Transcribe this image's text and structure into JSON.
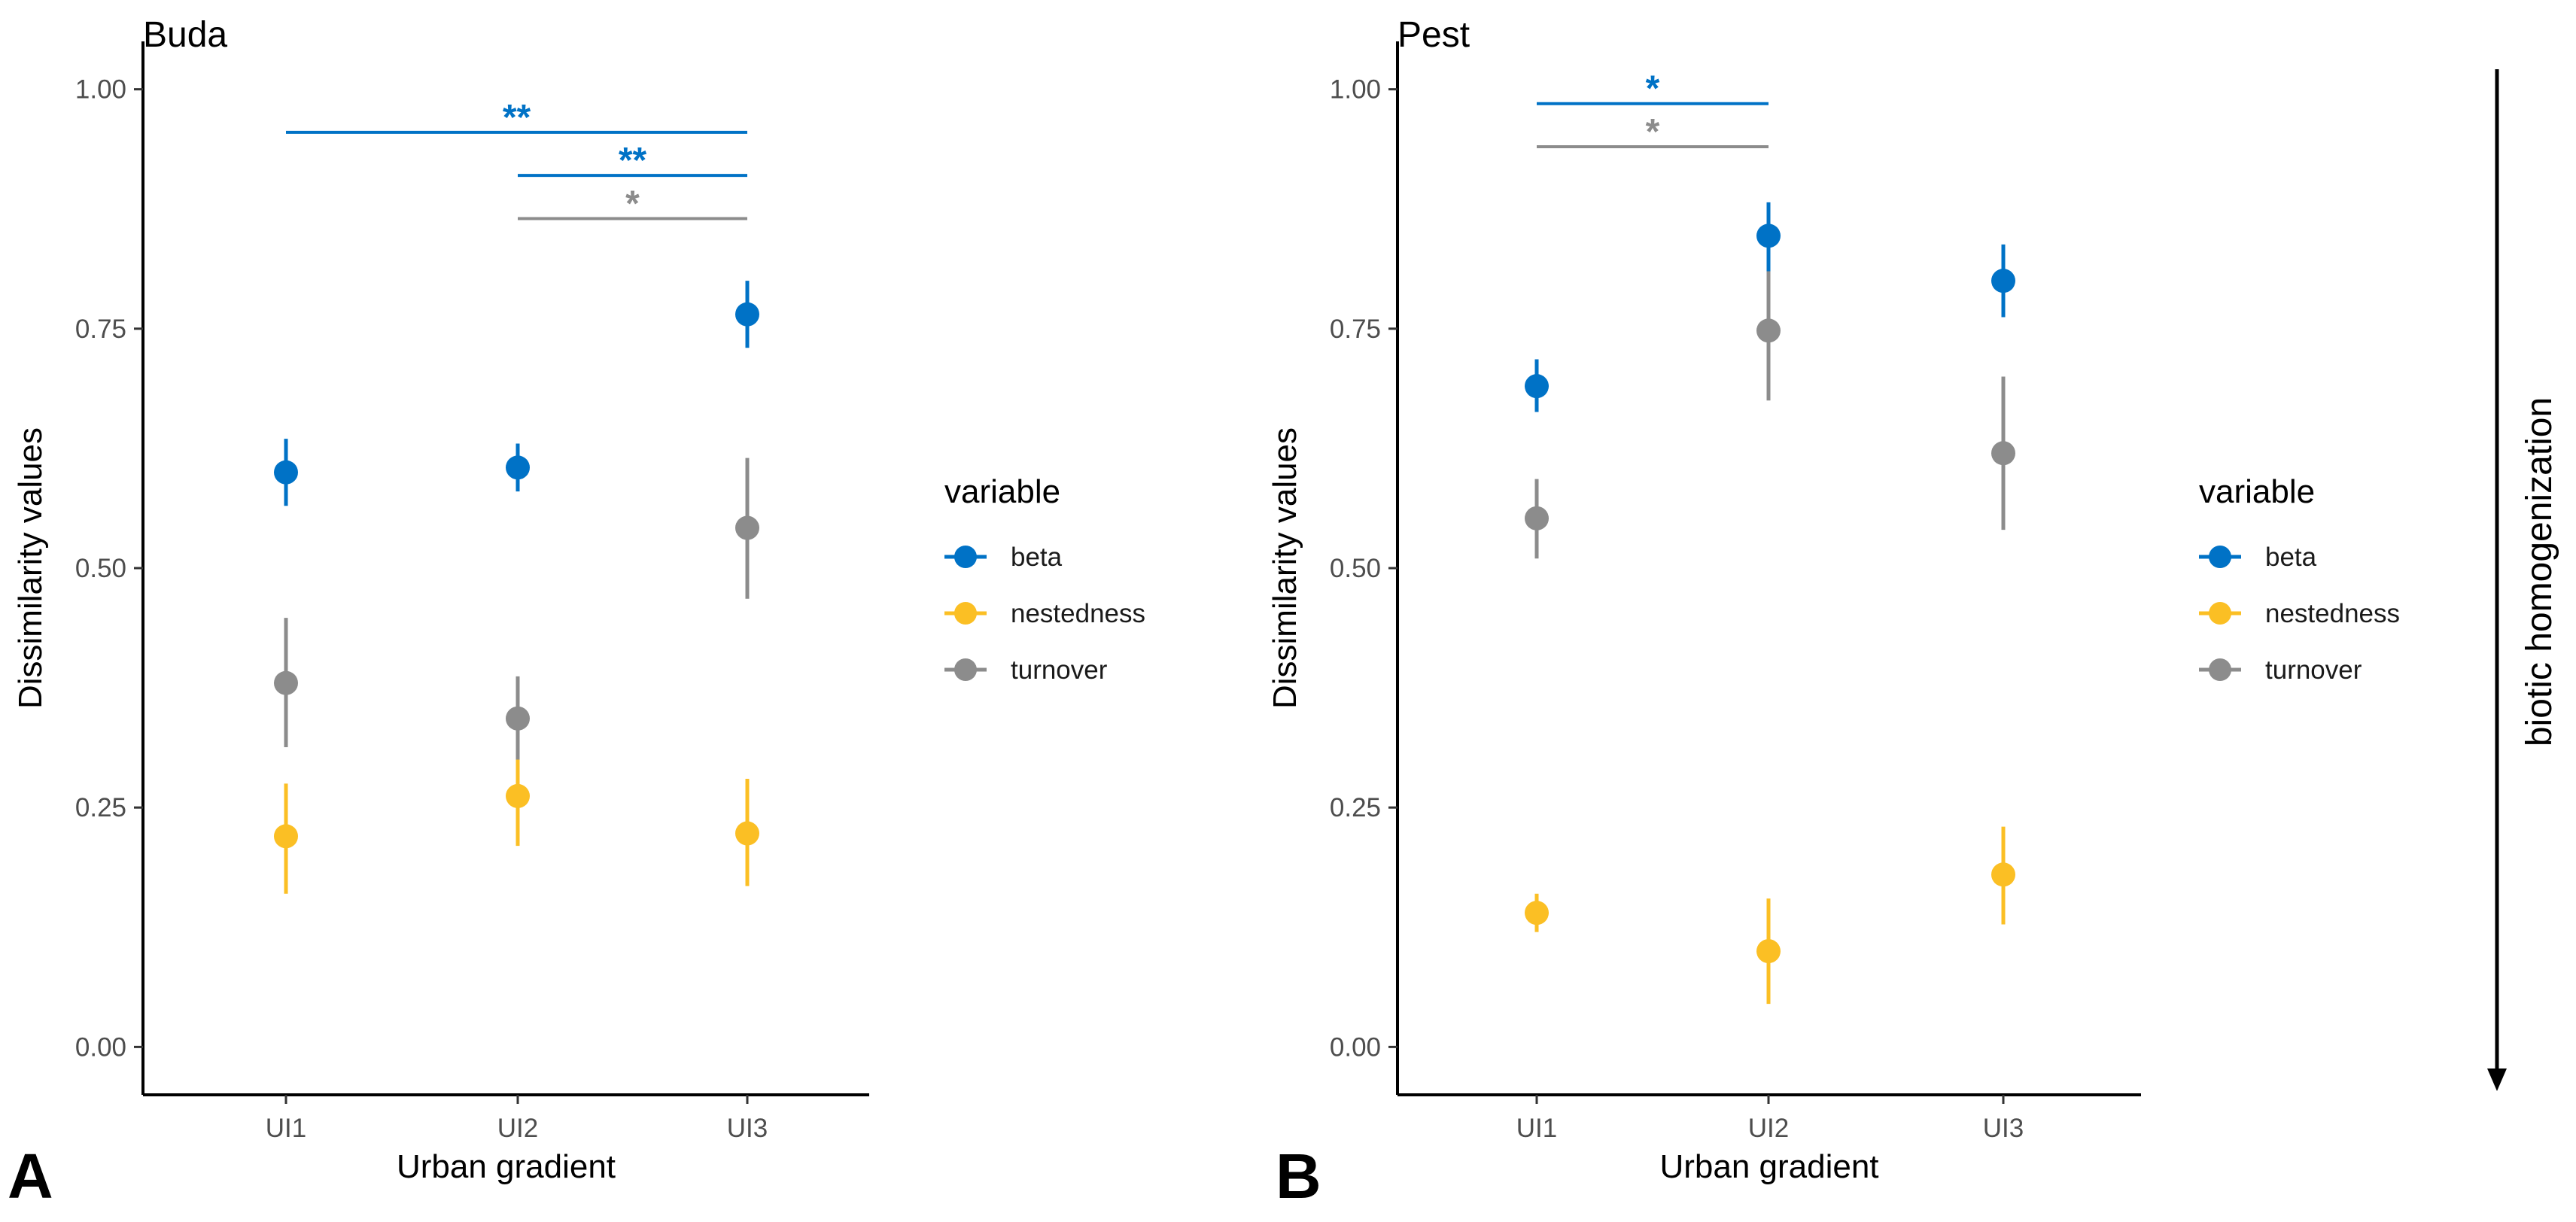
{
  "figure": {
    "side_annotation": "biotic homogenization"
  },
  "series_colors": {
    "beta": "#0072c6",
    "nestedness": "#fbbf24",
    "turnover": "#8c8c8c"
  },
  "chart_data": [
    {
      "type": "scatter",
      "panel": "A",
      "title": "Buda",
      "xlabel": "Urban gradient",
      "ylabel": "Dissimilarity values",
      "categories": [
        "UI1",
        "UI2",
        "UI3"
      ],
      "ylim": [
        -0.05,
        1.05
      ],
      "yticks": [
        "0.00",
        "0.25",
        "0.50",
        "0.75",
        "1.00"
      ],
      "legend_title": "variable",
      "legend_position": "right",
      "series": [
        {
          "name": "beta",
          "values": [
            0.6,
            0.605,
            0.765
          ],
          "lower": [
            0.565,
            0.58,
            0.73
          ],
          "upper": [
            0.635,
            0.63,
            0.8
          ]
        },
        {
          "name": "nestedness",
          "values": [
            0.22,
            0.262,
            0.223
          ],
          "lower": [
            0.16,
            0.21,
            0.168
          ],
          "upper": [
            0.275,
            0.315,
            0.28
          ]
        },
        {
          "name": "turnover",
          "values": [
            0.38,
            0.343,
            0.542
          ],
          "lower": [
            0.313,
            0.3,
            0.468
          ],
          "upper": [
            0.448,
            0.387,
            0.615
          ]
        }
      ],
      "significance": [
        {
          "from": "UI1",
          "to": "UI3",
          "level": 0.955,
          "label": "**",
          "series": "beta"
        },
        {
          "from": "UI2",
          "to": "UI3",
          "level": 0.91,
          "label": "**",
          "series": "beta"
        },
        {
          "from": "UI2",
          "to": "UI3",
          "level": 0.865,
          "label": "*",
          "series": "turnover"
        }
      ]
    },
    {
      "type": "scatter",
      "panel": "B",
      "title": "Pest",
      "xlabel": "Urban gradient",
      "ylabel": "Dissimilarity values",
      "categories": [
        "UI1",
        "UI2",
        "UI3"
      ],
      "ylim": [
        -0.05,
        1.05
      ],
      "yticks": [
        "0.00",
        "0.25",
        "0.50",
        "0.75",
        "1.00"
      ],
      "legend_title": "variable",
      "legend_position": "right",
      "series": [
        {
          "name": "beta",
          "values": [
            0.69,
            0.847,
            0.8
          ],
          "lower": [
            0.663,
            0.81,
            0.762
          ],
          "upper": [
            0.718,
            0.882,
            0.838
          ]
        },
        {
          "name": "nestedness",
          "values": [
            0.14,
            0.1,
            0.18
          ],
          "lower": [
            0.12,
            0.045,
            0.128
          ],
          "upper": [
            0.16,
            0.155,
            0.23
          ]
        },
        {
          "name": "turnover",
          "values": [
            0.552,
            0.748,
            0.62
          ],
          "lower": [
            0.51,
            0.675,
            0.54
          ],
          "upper": [
            0.593,
            0.81,
            0.7
          ]
        }
      ],
      "significance": [
        {
          "from": "UI1",
          "to": "UI2",
          "level": 0.985,
          "label": "*",
          "series": "beta"
        },
        {
          "from": "UI1",
          "to": "UI2",
          "level": 0.94,
          "label": "*",
          "series": "turnover"
        }
      ]
    }
  ]
}
